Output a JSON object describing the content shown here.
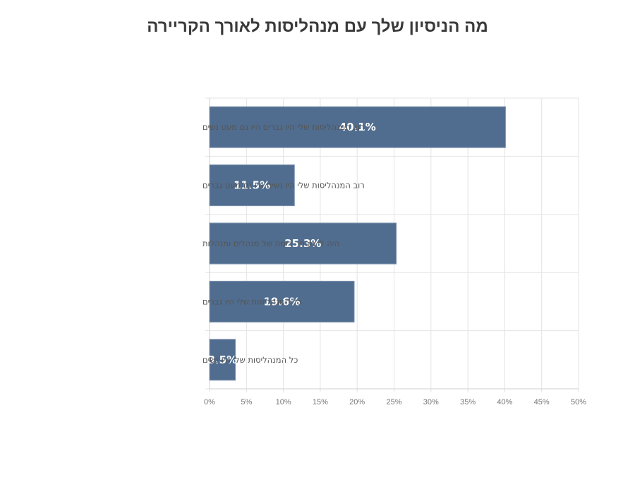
{
  "chart_data": {
    "type": "bar",
    "orientation": "horizontal",
    "title": "מה הניסיון שלך עם מנהליסות לאורך הקריירה",
    "categories": [
      "רוב המנהליסות שלי היו גברים היו גם מעט נשים",
      "רוב המנהליסות שלי היו נשים היו גם מעט גברים",
      "היה לי מספר דומה של מנהלים ומנהלות",
      "כל המנהליסות שלי היו גברים",
      "כל המנהליסות שלי היו נשים"
    ],
    "values": [
      40.1,
      11.5,
      25.3,
      19.6,
      3.5
    ],
    "data_labels": [
      "40.1%",
      "11.5%",
      "25.3%",
      "19.6%",
      "3.5%"
    ],
    "xlim": [
      0,
      50
    ],
    "x_ticks": [
      "0%",
      "5%",
      "10%",
      "15%",
      "20%",
      "25%",
      "30%",
      "35%",
      "40%",
      "45%",
      "50%"
    ],
    "grid": true,
    "bar_color": "#506d8f"
  }
}
